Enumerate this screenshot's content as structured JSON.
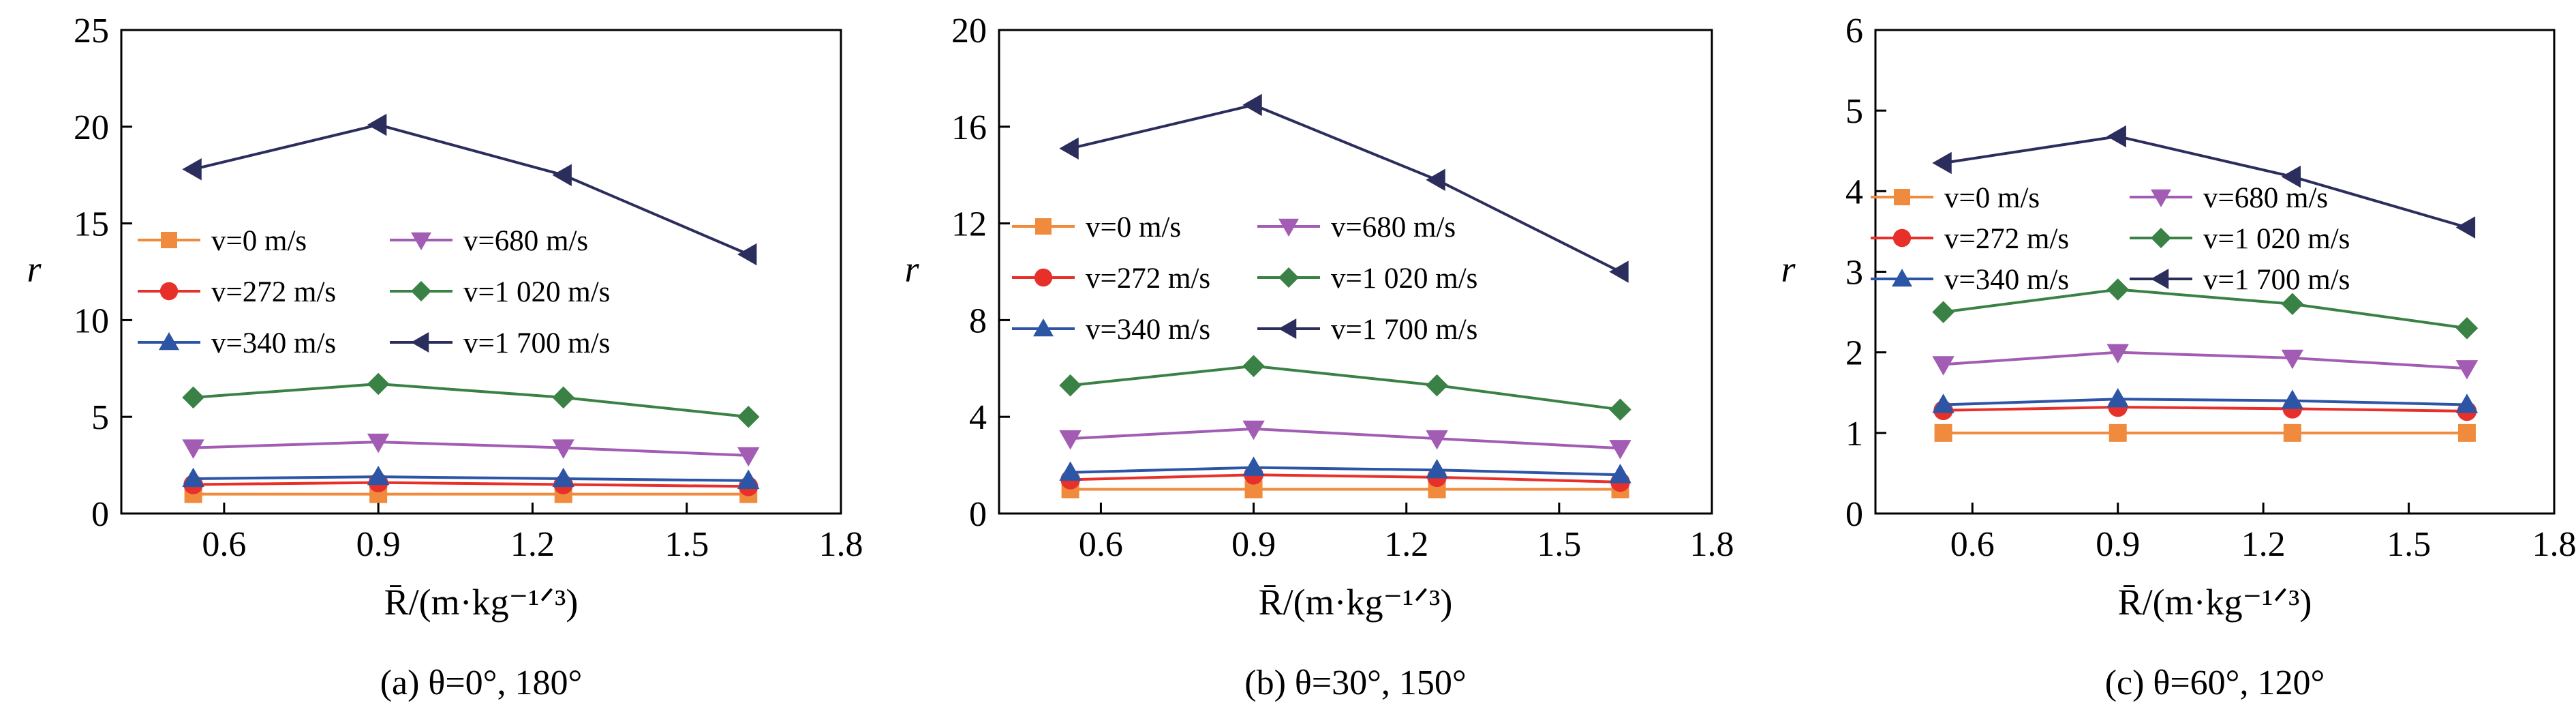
{
  "figure": {
    "panel_captions": [
      "(a) θ=0°, 180°",
      "(b) θ=30°, 150°",
      "(c) θ=60°, 120°"
    ]
  },
  "series_styles": [
    {
      "color": "#f08a3c",
      "marker": "square"
    },
    {
      "color": "#e8302a",
      "marker": "circle"
    },
    {
      "color": "#2d55a6",
      "marker": "triangle-up"
    },
    {
      "color": "#a25cb3",
      "marker": "triangle-down"
    },
    {
      "color": "#3a8145",
      "marker": "diamond"
    },
    {
      "color": "#2b2d5c",
      "marker": "triangle-left"
    }
  ],
  "chart_data": [
    {
      "type": "line",
      "caption": "(a) θ=0°, 180°",
      "xlabel": "R̄/(m·kg⁻¹ᐟ³)",
      "ylabel": "r",
      "xlim": [
        0.4,
        1.8
      ],
      "ylim": [
        0,
        25
      ],
      "xticks": [
        0.6,
        0.9,
        1.2,
        1.5,
        1.8
      ],
      "xtick_labels": [
        "0.6",
        "0.9",
        "1.2",
        "1.5",
        "1.8"
      ],
      "yticks": [
        0,
        5,
        10,
        15,
        20,
        25
      ],
      "ytick_labels": [
        "0",
        "5",
        "10",
        "15",
        "20",
        "25"
      ],
      "grid": false,
      "legend_position": "left, middle",
      "x": [
        0.54,
        0.9,
        1.26,
        1.62
      ],
      "series": [
        {
          "name": "v=0 m/s",
          "values": [
            1.0,
            1.0,
            1.0,
            1.0
          ]
        },
        {
          "name": "v=272 m/s",
          "values": [
            1.5,
            1.6,
            1.5,
            1.4
          ]
        },
        {
          "name": "v=340 m/s",
          "values": [
            1.8,
            1.9,
            1.8,
            1.7
          ]
        },
        {
          "name": "v=680 m/s",
          "values": [
            3.4,
            3.7,
            3.4,
            3.0
          ]
        },
        {
          "name": "v=1 020 m/s",
          "values": [
            6.0,
            6.7,
            6.0,
            5.0
          ]
        },
        {
          "name": "v=1 700 m/s",
          "values": [
            17.8,
            20.1,
            17.5,
            13.4
          ]
        }
      ]
    },
    {
      "type": "line",
      "caption": "(b) θ=30°, 150°",
      "xlabel": "R̄/(m·kg⁻¹ᐟ³)",
      "ylabel": "r",
      "xlim": [
        0.4,
        1.8
      ],
      "ylim": [
        0,
        20
      ],
      "xticks": [
        0.6,
        0.9,
        1.2,
        1.5,
        1.8
      ],
      "xtick_labels": [
        "0.6",
        "0.9",
        "1.2",
        "1.5",
        "1.8"
      ],
      "yticks": [
        0,
        4,
        8,
        12,
        16,
        20
      ],
      "ytick_labels": [
        "0",
        "4",
        "8",
        "12",
        "16",
        "20"
      ],
      "grid": false,
      "legend_position": "left, middle",
      "x": [
        0.54,
        0.9,
        1.26,
        1.62
      ],
      "series": [
        {
          "name": "v=0 m/s",
          "values": [
            1.0,
            1.0,
            1.0,
            1.0
          ]
        },
        {
          "name": "v=272 m/s",
          "values": [
            1.4,
            1.6,
            1.5,
            1.3
          ]
        },
        {
          "name": "v=340 m/s",
          "values": [
            1.7,
            1.9,
            1.8,
            1.6
          ]
        },
        {
          "name": "v=680 m/s",
          "values": [
            3.1,
            3.5,
            3.1,
            2.7
          ]
        },
        {
          "name": "v=1 020 m/s",
          "values": [
            5.3,
            6.1,
            5.3,
            4.3
          ]
        },
        {
          "name": "v=1 700 m/s",
          "values": [
            15.1,
            16.9,
            13.8,
            10.0
          ]
        }
      ]
    },
    {
      "type": "line",
      "caption": "(c) θ=60°, 120°",
      "xlabel": "R̄/(m·kg⁻¹ᐟ³)",
      "ylabel": "r",
      "xlim": [
        0.4,
        1.8
      ],
      "ylim": [
        0,
        6
      ],
      "xticks": [
        0.6,
        0.9,
        1.2,
        1.5,
        1.8
      ],
      "xtick_labels": [
        "0.6",
        "0.9",
        "1.2",
        "1.5",
        "1.8"
      ],
      "yticks": [
        0,
        1,
        2,
        3,
        4,
        5,
        6
      ],
      "ytick_labels": [
        "0",
        "1",
        "2",
        "3",
        "4",
        "5",
        "6"
      ],
      "grid": false,
      "legend_position": "left, upper-middle",
      "x": [
        0.54,
        0.9,
        1.26,
        1.62
      ],
      "series": [
        {
          "name": "v=0 m/s",
          "values": [
            1.0,
            1.0,
            1.0,
            1.0
          ]
        },
        {
          "name": "v=272 m/s",
          "values": [
            1.28,
            1.32,
            1.3,
            1.27
          ]
        },
        {
          "name": "v=340 m/s",
          "values": [
            1.35,
            1.42,
            1.4,
            1.35
          ]
        },
        {
          "name": "v=680 m/s",
          "values": [
            1.85,
            2.0,
            1.93,
            1.8
          ]
        },
        {
          "name": "v=1 020 m/s",
          "values": [
            2.5,
            2.78,
            2.6,
            2.3
          ]
        },
        {
          "name": "v=1 700 m/s",
          "values": [
            4.35,
            4.68,
            4.18,
            3.55
          ]
        }
      ]
    }
  ]
}
